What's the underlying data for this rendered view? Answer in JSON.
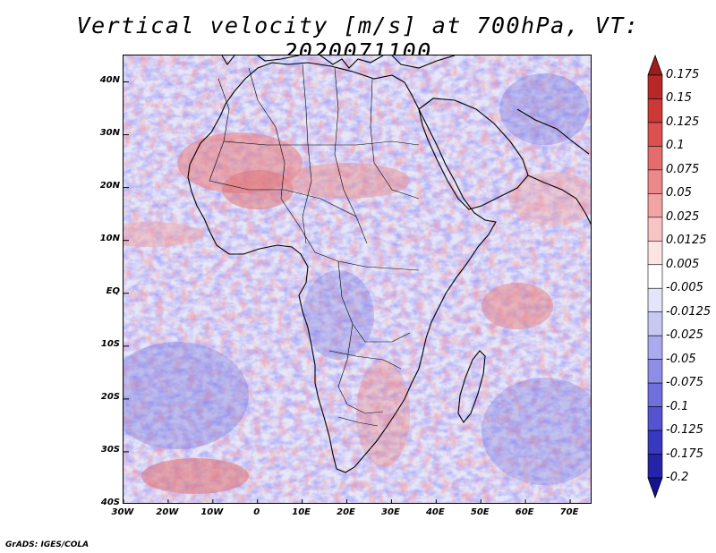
{
  "title": "Vertical velocity [m/s] at 700hPa, VT: 2020071100",
  "credit": "GrADS: IGES/COLA",
  "map": {
    "lon_range": [
      -30,
      75
    ],
    "lat_range": [
      -40,
      45
    ],
    "lat_ticks": [
      {
        "label": "40N",
        "value": 40
      },
      {
        "label": "30N",
        "value": 30
      },
      {
        "label": "20N",
        "value": 20
      },
      {
        "label": "10N",
        "value": 10
      },
      {
        "label": "EQ",
        "value": 0
      },
      {
        "label": "10S",
        "value": -10
      },
      {
        "label": "20S",
        "value": -20
      },
      {
        "label": "30S",
        "value": -30
      },
      {
        "label": "40S",
        "value": -40
      }
    ],
    "lon_ticks": [
      {
        "label": "30W",
        "value": -30
      },
      {
        "label": "20W",
        "value": -20
      },
      {
        "label": "10W",
        "value": -10
      },
      {
        "label": "0",
        "value": 0
      },
      {
        "label": "10E",
        "value": 10
      },
      {
        "label": "20E",
        "value": 20
      },
      {
        "label": "30E",
        "value": 30
      },
      {
        "label": "40E",
        "value": 40
      },
      {
        "label": "50E",
        "value": 50
      },
      {
        "label": "60E",
        "value": 60
      },
      {
        "label": "70E",
        "value": 70
      }
    ]
  },
  "colorbar": {
    "levels": [
      "0.175",
      "0.15",
      "0.125",
      "0.1",
      "0.075",
      "0.05",
      "0.025",
      "0.0125",
      "0.005",
      "-0.005",
      "-0.0125",
      "-0.025",
      "-0.05",
      "-0.075",
      "-0.1",
      "-0.125",
      "-0.175",
      "-0.2"
    ],
    "colors": [
      "#a01c1c",
      "#b82828",
      "#cc3838",
      "#dc5050",
      "#e46c6c",
      "#ec8888",
      "#f2a4a4",
      "#f8c4c4",
      "#fde4e4",
      "#ffffff",
      "#e4e4fa",
      "#c8c8f4",
      "#aaaaee",
      "#8e8ee6",
      "#7070dc",
      "#5454d0",
      "#3838c0",
      "#2424a8",
      "#141490"
    ]
  }
}
